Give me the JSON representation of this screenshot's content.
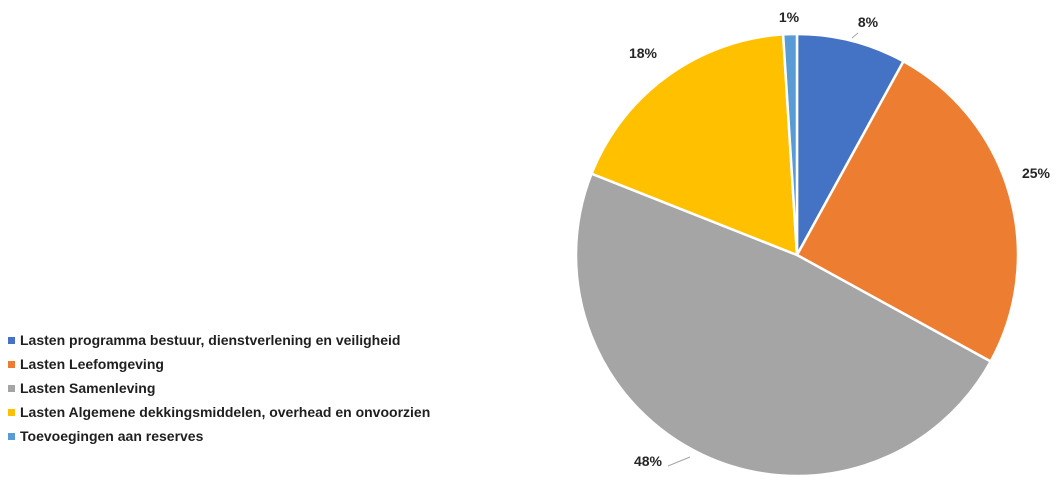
{
  "chart_data": {
    "type": "pie",
    "categories": [
      "Lasten programma bestuur, dienstverlening en veiligheid",
      "Lasten Leefomgeving",
      "Lasten Samenleving",
      "Lasten Algemene dekkingsmiddelen, overhead en onvoorzien",
      "Toevoegingen aan reserves"
    ],
    "values": [
      8,
      25,
      48,
      18,
      1
    ],
    "data_labels": [
      "8%",
      "25%",
      "48%",
      "18%",
      "1%"
    ],
    "colors": [
      "#4472C4",
      "#ED7D31",
      "#A5A5A5",
      "#FFC000",
      "#5B9BD5"
    ],
    "legend": "left-bottom",
    "start_angle_deg": 0,
    "direction": "clockwise"
  }
}
